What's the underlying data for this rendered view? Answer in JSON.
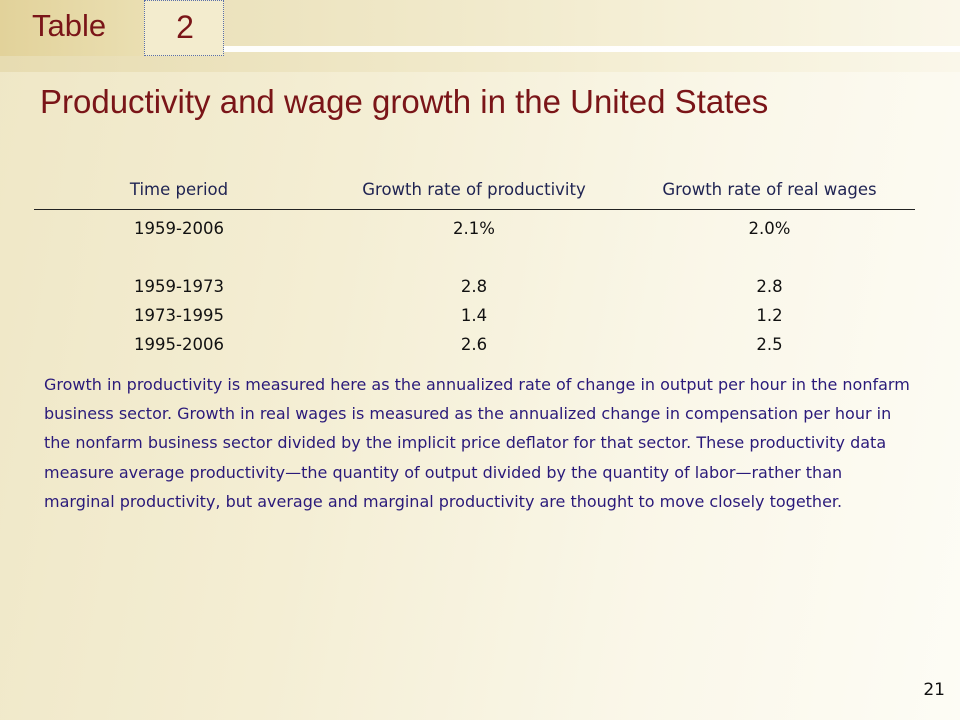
{
  "badge": {
    "label": "Table",
    "number": "2"
  },
  "title": "Productivity and wage growth in the United States",
  "table": {
    "headers": [
      "Time period",
      "Growth rate of productivity",
      "Growth rate of real wages"
    ],
    "rows": [
      [
        "1959-2006",
        "2.1%",
        "2.0%"
      ],
      [
        "1959-1973",
        "2.8",
        "2.8"
      ],
      [
        "1973-1995",
        "1.4",
        "1.2"
      ],
      [
        "1995-2006",
        "2.6",
        "2.5"
      ]
    ]
  },
  "note": "Growth in productivity is measured here as the annualized rate of change in output per hour in the nonfarm business sector. Growth in real wages is measured as the annualized change in compensation per hour in the nonfarm business sector divided by the implicit price deflator for that sector. These productivity data measure average productivity—the quantity of output divided by the quantity of labor—rather than marginal productivity, but average and marginal productivity are thought to move closely together.",
  "page_number": "21",
  "colors": {
    "title": "#7a1518",
    "header_text": "#1f2352",
    "note_text": "#2a1a7a",
    "background": "#f4eed4"
  }
}
